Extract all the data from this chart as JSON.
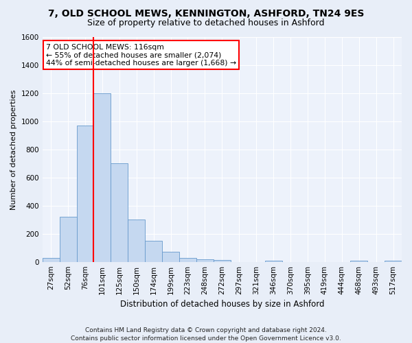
{
  "title": "7, OLD SCHOOL MEWS, KENNINGTON, ASHFORD, TN24 9ES",
  "subtitle": "Size of property relative to detached houses in Ashford",
  "xlabel": "Distribution of detached houses by size in Ashford",
  "ylabel": "Number of detached properties",
  "footer": "Contains HM Land Registry data © Crown copyright and database right 2024.\nContains public sector information licensed under the Open Government Licence v3.0.",
  "bar_values": [
    30,
    320,
    970,
    1200,
    700,
    300,
    150,
    70,
    30,
    20,
    15,
    0,
    0,
    10,
    0,
    0,
    0,
    0,
    10,
    0,
    10
  ],
  "bar_labels": [
    "27sqm",
    "52sqm",
    "76sqm",
    "101sqm",
    "125sqm",
    "150sqm",
    "174sqm",
    "199sqm",
    "223sqm",
    "248sqm",
    "272sqm",
    "297sqm",
    "321sqm",
    "346sqm",
    "370sqm",
    "395sqm",
    "419sqm",
    "444sqm",
    "468sqm",
    "493sqm",
    "517sqm"
  ],
  "bar_color": "#c5d8f0",
  "bar_edge_color": "#6699cc",
  "vline_x": 2.5,
  "vline_color": "red",
  "annotation_text": "7 OLD SCHOOL MEWS: 116sqm\n← 55% of detached houses are smaller (2,074)\n44% of semi-detached houses are larger (1,668) →",
  "annotation_box_color": "red",
  "ylim": [
    0,
    1600
  ],
  "yticks": [
    0,
    200,
    400,
    600,
    800,
    1000,
    1200,
    1400,
    1600
  ],
  "bg_color": "#e8eef8",
  "plot_bg_color": "#edf2fb",
  "grid_color": "#ffffff",
  "title_fontsize": 10,
  "subtitle_fontsize": 9,
  "tick_fontsize": 7.5,
  "ylabel_fontsize": 8,
  "xlabel_fontsize": 8.5,
  "footer_fontsize": 6.5
}
